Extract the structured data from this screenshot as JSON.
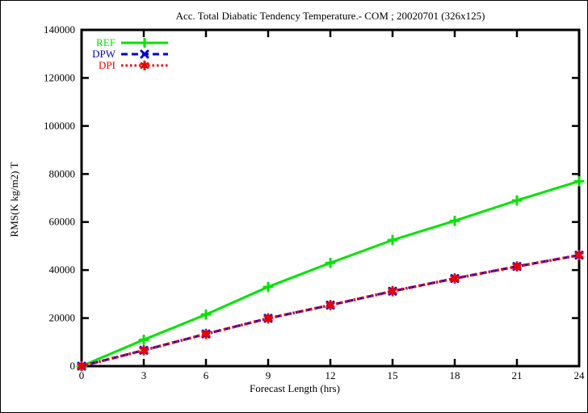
{
  "chart_data": {
    "type": "line",
    "title": "Acc. Total Diabatic Tendency Temperature.- COM ; 20020701 (326x125)",
    "xlabel": "Forecast Length (hrs)",
    "ylabel": "RMS(K kg/m2) T",
    "x": [
      0,
      3,
      6,
      9,
      12,
      15,
      18,
      21,
      24
    ],
    "xlim": [
      0,
      24
    ],
    "ylim": [
      0,
      140000
    ],
    "xticks": [
      0,
      3,
      6,
      9,
      12,
      15,
      18,
      21,
      24
    ],
    "yticks": [
      0,
      20000,
      40000,
      60000,
      80000,
      100000,
      120000,
      140000
    ],
    "grid": false,
    "legend_position": "top-left-inside",
    "frame_color": "#000000",
    "background_color": "#ffffff",
    "series": [
      {
        "name": "REF",
        "color": "#00e400",
        "line_style": "solid",
        "marker": "plus",
        "values": [
          0,
          11000,
          21500,
          33000,
          43000,
          52500,
          60500,
          69000,
          77000
        ]
      },
      {
        "name": "DPW",
        "color": "#0000dd",
        "line_style": "dashed",
        "marker": "cross",
        "values": [
          0,
          6600,
          13400,
          19900,
          25400,
          31200,
          36500,
          41500,
          46200
        ]
      },
      {
        "name": "DPI",
        "color": "#ee0000",
        "line_style": "dotted",
        "marker": "asterisk",
        "values": [
          0,
          6600,
          13400,
          19900,
          25400,
          31200,
          36500,
          41500,
          46200
        ]
      }
    ]
  }
}
